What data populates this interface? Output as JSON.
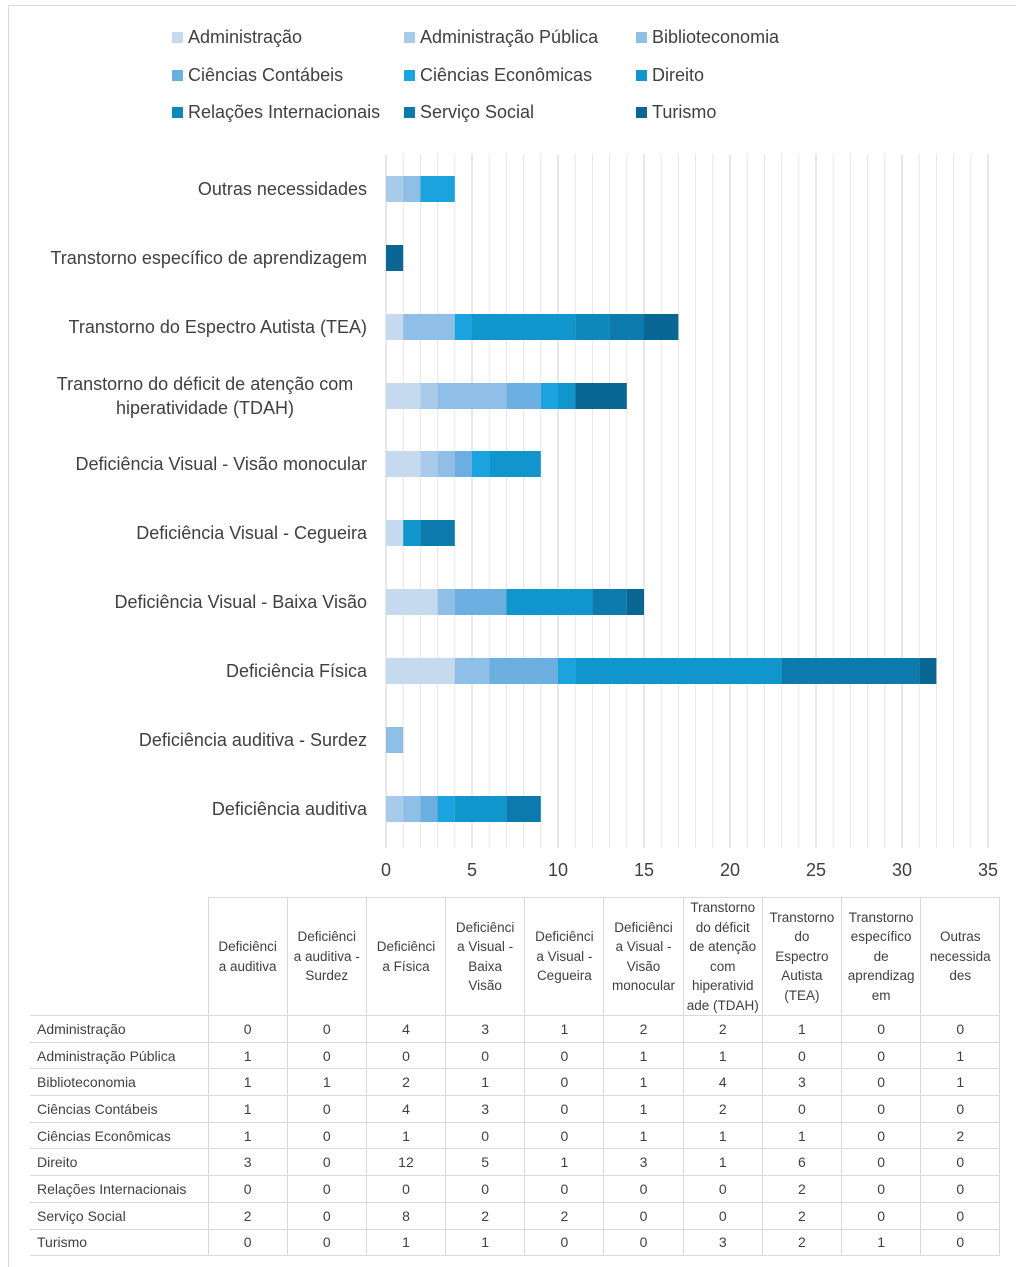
{
  "chart_data": {
    "type": "bar",
    "orientation": "horizontal",
    "stacked": true,
    "categories": [
      "Deficiência auditiva",
      "Deficiência auditiva - Surdez",
      "Deficiência Física",
      "Deficiência Visual - Baixa Visão",
      "Deficiência Visual - Cegueira",
      "Deficiência Visual - Visão monocular",
      "Transtorno do déficit de atenção com hiperatividade (TDAH)",
      "Transtorno do Espectro Autista (TEA)",
      "Transtorno específico de aprendizagem",
      "Outras necessidades"
    ],
    "series": [
      {
        "name": "Administração",
        "color": "#c5d9ef",
        "values": [
          0,
          0,
          4,
          3,
          1,
          2,
          2,
          1,
          0,
          0
        ]
      },
      {
        "name": "Administração Pública",
        "color": "#a8cbea",
        "values": [
          1,
          0,
          0,
          0,
          0,
          1,
          1,
          0,
          0,
          1
        ]
      },
      {
        "name": "Biblioteconomia",
        "color": "#8fbee6",
        "values": [
          1,
          1,
          2,
          1,
          0,
          1,
          4,
          3,
          0,
          1
        ]
      },
      {
        "name": "Ciências Contábeis",
        "color": "#6aafe0",
        "values": [
          1,
          0,
          4,
          3,
          0,
          1,
          2,
          0,
          0,
          0
        ]
      },
      {
        "name": "Ciências Econômicas",
        "color": "#1aa3de",
        "values": [
          1,
          0,
          1,
          0,
          0,
          1,
          1,
          1,
          0,
          2
        ]
      },
      {
        "name": "Direito",
        "color": "#1096cc",
        "values": [
          3,
          0,
          12,
          5,
          1,
          3,
          1,
          6,
          0,
          0
        ]
      },
      {
        "name": "Relações Internacionais",
        "color": "#0e88bb",
        "values": [
          0,
          0,
          0,
          0,
          0,
          0,
          0,
          2,
          0,
          0
        ]
      },
      {
        "name": "Serviço Social",
        "color": "#0c7aac",
        "values": [
          2,
          0,
          8,
          2,
          2,
          0,
          0,
          2,
          0,
          0
        ]
      },
      {
        "name": "Turismo",
        "color": "#0a6794",
        "values": [
          0,
          0,
          1,
          1,
          0,
          0,
          3,
          2,
          1,
          0
        ]
      }
    ],
    "x_ticks": [
      0,
      5,
      10,
      15,
      20,
      25,
      30,
      35
    ],
    "xlim": [
      0,
      35
    ],
    "grid": "vertical gridlines every 1 unit",
    "legend_position": "top"
  },
  "table": {
    "headers": [
      "Deficiênci a auditiva",
      "Deficiênci a auditiva - Surdez",
      "Deficiênci a Física",
      "Deficiênci a Visual - Baixa Visão",
      "Deficiênci a Visual - Cegueira",
      "Deficiênci a Visual - Visão monocular",
      "Transtorno do déficit de atenção com hiperativid ade (TDAH)",
      "Transtorno do Espectro Autista (TEA)",
      "Transtorno específico de aprendizag em",
      "Outras necessida des"
    ],
    "header_lines": [
      [
        "Deficiênci",
        "a auditiva"
      ],
      [
        "Deficiênci",
        "a auditiva -",
        "Surdez"
      ],
      [
        "Deficiênci",
        "a Física"
      ],
      [
        "Deficiênci",
        "a Visual -",
        "Baixa",
        "Visão"
      ],
      [
        "Deficiênci",
        "a Visual -",
        "Cegueira"
      ],
      [
        "Deficiênci",
        "a Visual -",
        "Visão",
        "monocular"
      ],
      [
        "Transtorno",
        "do déficit",
        "de atenção",
        "com",
        "hiperativid",
        "ade (TDAH)"
      ],
      [
        "Transtorno",
        "do",
        "Espectro",
        "Autista",
        "(TEA)"
      ],
      [
        "Transtorno",
        "específico",
        "de",
        "aprendizag",
        "em"
      ],
      [
        "Outras",
        "necessida",
        "des"
      ]
    ]
  },
  "category_label_lines": [
    [
      "Deficiência auditiva"
    ],
    [
      "Deficiência auditiva - Surdez"
    ],
    [
      "Deficiência Física"
    ],
    [
      "Deficiência Visual - Baixa Visão"
    ],
    [
      "Deficiência Visual - Cegueira"
    ],
    [
      "Deficiência Visual - Visão monocular"
    ],
    [
      "Transtorno do déficit de atenção com",
      "hiperatividade (TDAH)"
    ],
    [
      "Transtorno do Espectro Autista (TEA)"
    ],
    [
      "Transtorno específico de aprendizagem"
    ],
    [
      "Outras necessidades"
    ]
  ]
}
